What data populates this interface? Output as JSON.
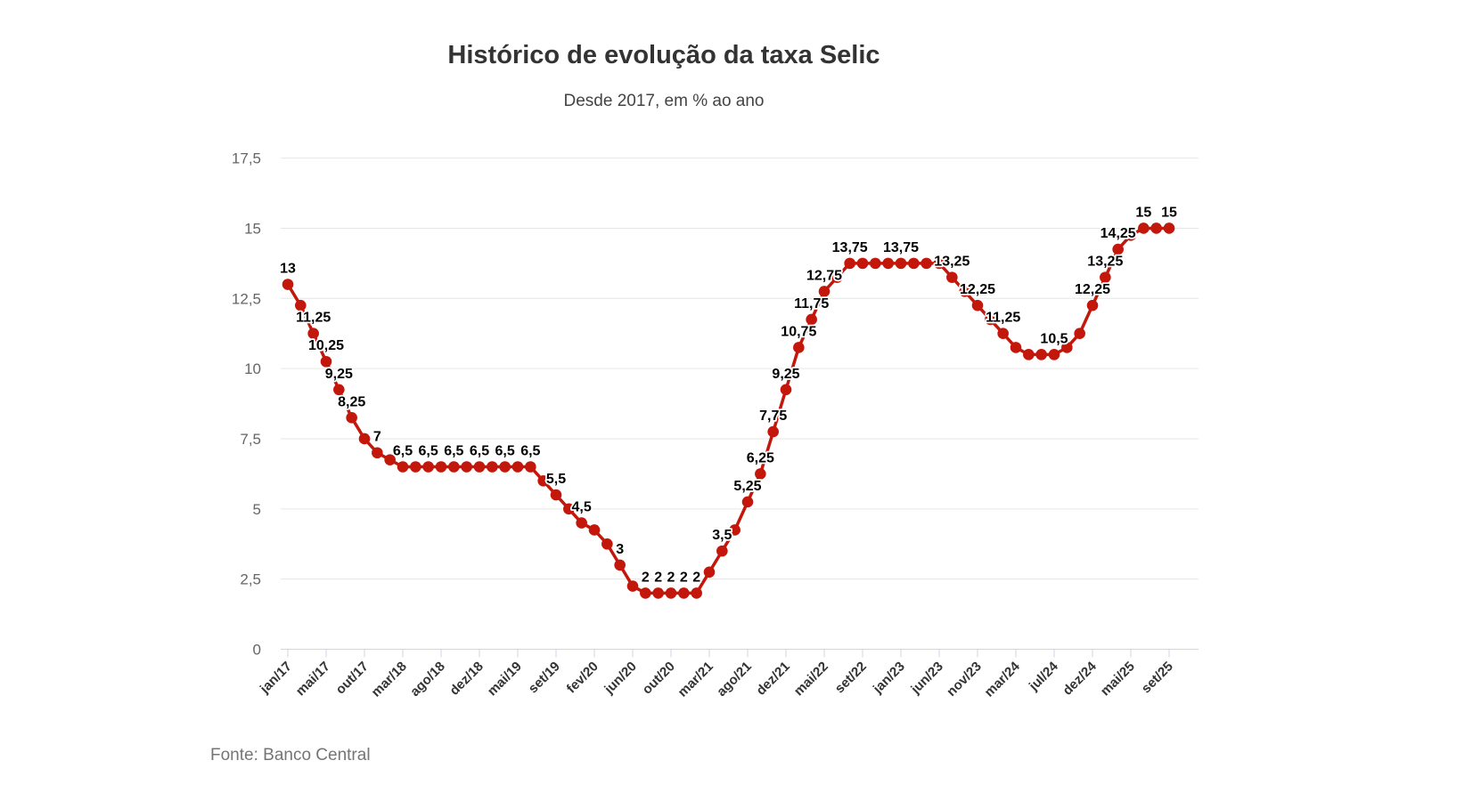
{
  "header": {
    "title": "Histórico de evolução da taxa Selic",
    "subtitle": "Desde 2017, em % ao ano"
  },
  "source": "Fonte: Banco Central",
  "chart_data": {
    "type": "line",
    "title": "Histórico de evolução da taxa Selic",
    "subtitle": "Desde 2017, em % ao ano",
    "ylabel": "",
    "xlabel": "",
    "ylim": [
      0,
      17.5
    ],
    "ytick_step": 2.5,
    "ytick_labels": [
      "0",
      "2,5",
      "5",
      "7,5",
      "10",
      "12,5",
      "15",
      "17,5"
    ],
    "grid": true,
    "xtick_every": 3,
    "legend": "none",
    "colors": {
      "series": "#c4170c",
      "grid": "#e6e6e6",
      "axis": "#ccd6eb",
      "ytick_text": "#666666",
      "xtick_text": "#333333",
      "datalabel_text": "#000000"
    },
    "points": [
      {
        "x": "jan/17",
        "y": 13,
        "label": "13"
      },
      {
        "x": "fev/17",
        "y": 12.25,
        "label": null
      },
      {
        "x": "abr/17",
        "y": 11.25,
        "label": "11,25"
      },
      {
        "x": "mai/17",
        "y": 10.25,
        "label": "10,25"
      },
      {
        "x": "jul/17",
        "y": 9.25,
        "label": "9,25"
      },
      {
        "x": "set/17",
        "y": 8.25,
        "label": "8,25"
      },
      {
        "x": "out/17",
        "y": 7.5,
        "label": null
      },
      {
        "x": "dez/17",
        "y": 7,
        "label": "7"
      },
      {
        "x": "fev/18",
        "y": 6.75,
        "label": null
      },
      {
        "x": "mar/18",
        "y": 6.5,
        "label": "6,5"
      },
      {
        "x": "mai/18",
        "y": 6.5,
        "label": null
      },
      {
        "x": "jun/18",
        "y": 6.5,
        "label": "6,5"
      },
      {
        "x": "ago/18",
        "y": 6.5,
        "label": null
      },
      {
        "x": "set/18",
        "y": 6.5,
        "label": "6,5"
      },
      {
        "x": "out/18",
        "y": 6.5,
        "label": null
      },
      {
        "x": "dez/18",
        "y": 6.5,
        "label": "6,5"
      },
      {
        "x": "fev/19",
        "y": 6.5,
        "label": null
      },
      {
        "x": "mar/19",
        "y": 6.5,
        "label": "6,5"
      },
      {
        "x": "mai/19",
        "y": 6.5,
        "label": null
      },
      {
        "x": "jun/19",
        "y": 6.5,
        "label": "6,5"
      },
      {
        "x": "jul/19",
        "y": 6,
        "label": null
      },
      {
        "x": "set/19",
        "y": 5.5,
        "label": "5,5"
      },
      {
        "x": "out/19",
        "y": 5,
        "label": null
      },
      {
        "x": "dez/19",
        "y": 4.5,
        "label": "4,5"
      },
      {
        "x": "fev/20",
        "y": 4.25,
        "label": null
      },
      {
        "x": "mar/20",
        "y": 3.75,
        "label": null
      },
      {
        "x": "mai/20",
        "y": 3,
        "label": "3"
      },
      {
        "x": "jun/20",
        "y": 2.25,
        "label": null
      },
      {
        "x": "ago/20",
        "y": 2,
        "label": "2"
      },
      {
        "x": "set/20",
        "y": 2,
        "label": "2"
      },
      {
        "x": "out/20",
        "y": 2,
        "label": "2"
      },
      {
        "x": "dez/20",
        "y": 2,
        "label": "2"
      },
      {
        "x": "jan/21",
        "y": 2,
        "label": "2"
      },
      {
        "x": "mar/21",
        "y": 2.75,
        "label": null
      },
      {
        "x": "mai/21",
        "y": 3.5,
        "label": "3,5"
      },
      {
        "x": "jun/21",
        "y": 4.25,
        "label": null
      },
      {
        "x": "ago/21",
        "y": 5.25,
        "label": "5,25"
      },
      {
        "x": "set/21",
        "y": 6.25,
        "label": "6,25"
      },
      {
        "x": "out/21",
        "y": 7.75,
        "label": "7,75"
      },
      {
        "x": "dez/21",
        "y": 9.25,
        "label": "9,25"
      },
      {
        "x": "fev/22",
        "y": 10.75,
        "label": "10,75"
      },
      {
        "x": "mar/22",
        "y": 11.75,
        "label": "11,75"
      },
      {
        "x": "mai/22",
        "y": 12.75,
        "label": "12,75"
      },
      {
        "x": "jun/22",
        "y": 13.25,
        "label": null
      },
      {
        "x": "ago/22",
        "y": 13.75,
        "label": "13,75"
      },
      {
        "x": "set/22",
        "y": 13.75,
        "label": null
      },
      {
        "x": "out/22",
        "y": 13.75,
        "label": null
      },
      {
        "x": "dez/22",
        "y": 13.75,
        "label": null
      },
      {
        "x": "jan/23",
        "y": 13.75,
        "label": "13,75"
      },
      {
        "x": "mar/23",
        "y": 13.75,
        "label": null
      },
      {
        "x": "mai/23",
        "y": 13.75,
        "label": null
      },
      {
        "x": "jun/23",
        "y": 13.75,
        "label": null
      },
      {
        "x": "ago/23",
        "y": 13.25,
        "label": "13,25"
      },
      {
        "x": "set/23",
        "y": 12.75,
        "label": null
      },
      {
        "x": "nov/23",
        "y": 12.25,
        "label": "12,25"
      },
      {
        "x": "dez/23",
        "y": 11.75,
        "label": null
      },
      {
        "x": "jan/24",
        "y": 11.25,
        "label": "11,25"
      },
      {
        "x": "mar/24",
        "y": 10.75,
        "label": null
      },
      {
        "x": "mai/24",
        "y": 10.5,
        "label": null
      },
      {
        "x": "jun/24",
        "y": 10.5,
        "label": null
      },
      {
        "x": "jul/24",
        "y": 10.5,
        "label": "10,5"
      },
      {
        "x": "set/24",
        "y": 10.75,
        "label": null
      },
      {
        "x": "nov/24",
        "y": 11.25,
        "label": null
      },
      {
        "x": "dez/24",
        "y": 12.25,
        "label": "12,25"
      },
      {
        "x": "jan/25",
        "y": 13.25,
        "label": "13,25"
      },
      {
        "x": "mar/25",
        "y": 14.25,
        "label": "14,25"
      },
      {
        "x": "mai/25",
        "y": 14.75,
        "label": null
      },
      {
        "x": "jun/25",
        "y": 15,
        "label": "15"
      },
      {
        "x": "jul/25",
        "y": 15,
        "label": null
      },
      {
        "x": "set/25",
        "y": 15,
        "label": "15"
      }
    ]
  }
}
